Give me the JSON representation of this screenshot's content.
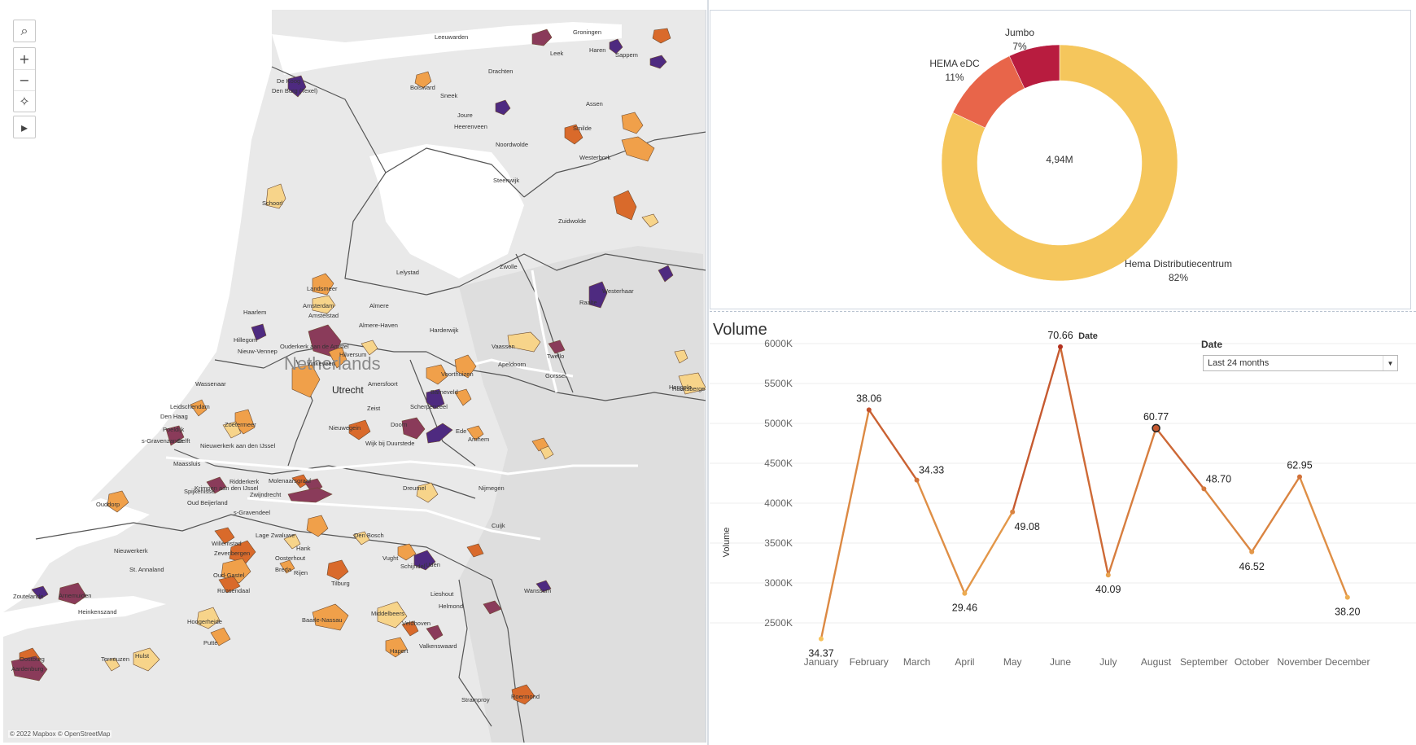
{
  "map": {
    "country_label": "Netherlands",
    "capital_label": "Utrecht",
    "attribution": "© 2022 Mapbox © OpenStreetMap",
    "tools": {
      "search_icon": "⌕",
      "zoom_in": "+",
      "zoom_out": "−",
      "pin_icon": "✧",
      "play_icon": "▸"
    },
    "places": [
      "Leeuwarden",
      "Groningen",
      "Haren",
      "Sappem",
      "Leek",
      "Drachten",
      "De Koog",
      "Den Burg (Texel)",
      "Bolsward",
      "Sneek",
      "Joure",
      "Heerenveen",
      "Assen",
      "Smilde",
      "Noordwolde",
      "Westerbork",
      "Steenwijk",
      "Schoorl",
      "Zuidwolde",
      "Lelystad",
      "Zwolle",
      "Westerhaar",
      "Raalte",
      "Landsmeer",
      "Amsterdam",
      "Haarlem",
      "Amstelstad",
      "Almere",
      "Almere-Haven",
      "Harderwijk",
      "Hillegom",
      "Nieuw-Vennep",
      "Ouderkerk aan de Amstel",
      "Vinkeveen",
      "Hilversum",
      "Vaassen",
      "Apeldoorn",
      "Twello",
      "Voorthuizen",
      "Gorssel",
      "Barneveld",
      "Hengelo",
      "Haaksbergen",
      "Wassenaar",
      "Leidschendam",
      "Den Haag",
      "Zoetermeer",
      "Poeldijk",
      "Delft",
      "s-Gravenzande",
      "Amersfoort",
      "Zeist",
      "Scherpenzeel",
      "Ede",
      "Nieuwegein",
      "Doorn",
      "Wijk bij Duurstede",
      "Arnhem",
      "Maassluis",
      "Nieuwerkerk aan den IJssel",
      "Krimpen aan den IJssel",
      "Ridderkerk",
      "Molenaarsgraaf",
      "Spijkenisse",
      "Oud Beijerland",
      "Zwijndrecht",
      "Dreumel",
      "Nijmegen",
      "Ouddorp",
      "s-Gravendeel",
      "Willemstad",
      "Lage Zwaluwe",
      "Hank",
      "Den Bosch",
      "Cuijk",
      "Nieuwerkerk",
      "Zevenbergen",
      "Oosterhout",
      "Vught",
      "Schijndel",
      "Uden",
      "Wanssum",
      "St. Annaland",
      "Oud-Gastel",
      "Breda",
      "Rijen",
      "Tilburg",
      "Roosendaal",
      "Zoutelande",
      "Arnemuiden",
      "Lieshout",
      "Helmond",
      "Heinkenszand",
      "Middelbeers",
      "Baarle-Nassau",
      "Hoogerheide",
      "Veldhoven",
      "Valkenswaard",
      "Putte",
      "Hapert",
      "Oostburg",
      "Terneuzen",
      "Hulst",
      "Aardenburg",
      "Stramproy",
      "Roermond"
    ],
    "colors": {
      "land": "#e9e9e9",
      "water": "#ffffff",
      "border": "#555555",
      "region_light": "#f7d48a",
      "region_mid": "#f0a04a",
      "region_dark": "#d96a2b",
      "region_maroon": "#8a3b5a",
      "region_purple": "#4e2a80"
    }
  },
  "donut": {
    "center_label": "4,94M",
    "colors": {
      "hema_dc": "#f5c65c",
      "hema_edc": "#e8654a",
      "jumbo": "#b81c3f"
    },
    "segments": [
      {
        "name": "Hema Distributiecentrum",
        "pct_label": "82%",
        "value": 82
      },
      {
        "name": "HEMA eDC",
        "pct_label": "11%",
        "value": 11
      },
      {
        "name": "Jumbo",
        "pct_label": "7%",
        "value": 7
      }
    ]
  },
  "volume": {
    "title": "Volume",
    "filter_label": "Date",
    "filter_value": "Last 24 months",
    "filter_arrow_icon": "▼"
  },
  "chart_data": {
    "type": "line",
    "title": "Volume",
    "xlabel": "Date",
    "ylabel": "Volume",
    "categories": [
      "January",
      "February",
      "March",
      "April",
      "May",
      "June",
      "July",
      "August",
      "September",
      "October",
      "November",
      "December"
    ],
    "values": [
      2300,
      5170,
      4290,
      2870,
      3890,
      5960,
      3100,
      4940,
      4180,
      3390,
      4330,
      2820
    ],
    "data_labels": [
      "34.37",
      "38.06",
      "34.33",
      "29.46",
      "49.08",
      "70.66",
      "40.09",
      "60.77",
      "48.70",
      "46.52",
      "62.95",
      "38.20"
    ],
    "ylim": [
      2200,
      6100
    ],
    "yticks": [
      2500,
      3000,
      3500,
      4000,
      4500,
      5000,
      5500,
      6000
    ],
    "ytick_labels": [
      "2500K",
      "3000K",
      "3500K",
      "4000K",
      "4500K",
      "5000K",
      "5500K",
      "6000K"
    ],
    "grid": true,
    "color_scale": [
      "#f7c25b",
      "#b3311f"
    ]
  }
}
